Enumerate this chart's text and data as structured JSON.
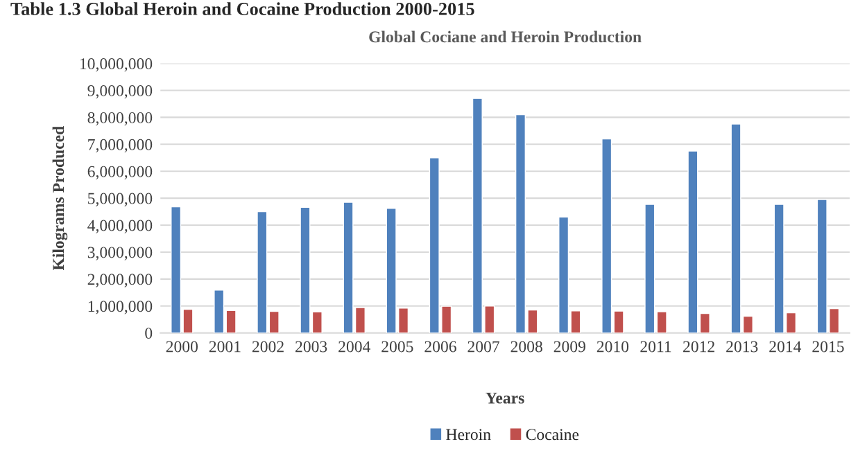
{
  "chart_data": {
    "type": "bar",
    "title": "Global Cociane and Heroin Production",
    "xlabel": "Years",
    "ylabel": "Kilograms Produced",
    "annotations": [
      "Table 1.3 Global Heroin and Cocaine Production 2000-2015"
    ],
    "categories": [
      "2000",
      "2001",
      "2002",
      "2003",
      "2004",
      "2005",
      "2006",
      "2007",
      "2008",
      "2009",
      "2010",
      "2011",
      "2012",
      "2013",
      "2014",
      "2015"
    ],
    "series": [
      {
        "name": "Heroin",
        "color": "#4f81bd",
        "values": [
          4680000,
          1590000,
          4500000,
          4660000,
          4850000,
          4620000,
          6500000,
          8700000,
          8100000,
          4300000,
          7200000,
          4770000,
          6750000,
          7750000,
          4770000,
          4950000
        ]
      },
      {
        "name": "Cocaine",
        "color": "#c0504d",
        "values": [
          880000,
          830000,
          800000,
          780000,
          940000,
          920000,
          990000,
          1000000,
          850000,
          820000,
          810000,
          790000,
          720000,
          620000,
          750000,
          900000
        ]
      }
    ],
    "ylim": [
      0,
      10000000
    ],
    "yticks": [
      {
        "value": 0,
        "label": "0"
      },
      {
        "value": 1000000,
        "label": "1,000,000"
      },
      {
        "value": 2000000,
        "label": "2,000,000"
      },
      {
        "value": 3000000,
        "label": "3,000,000"
      },
      {
        "value": 4000000,
        "label": "4,000,000"
      },
      {
        "value": 5000000,
        "label": "5,000,000"
      },
      {
        "value": 6000000,
        "label": "6,000,000"
      },
      {
        "value": 7000000,
        "label": "7,000,000"
      },
      {
        "value": 8000000,
        "label": "8,000,000"
      },
      {
        "value": 9000000,
        "label": "9,000,000"
      },
      {
        "value": 10000000,
        "label": "10,000,000"
      }
    ],
    "grid": "y",
    "legend": "bottom"
  }
}
